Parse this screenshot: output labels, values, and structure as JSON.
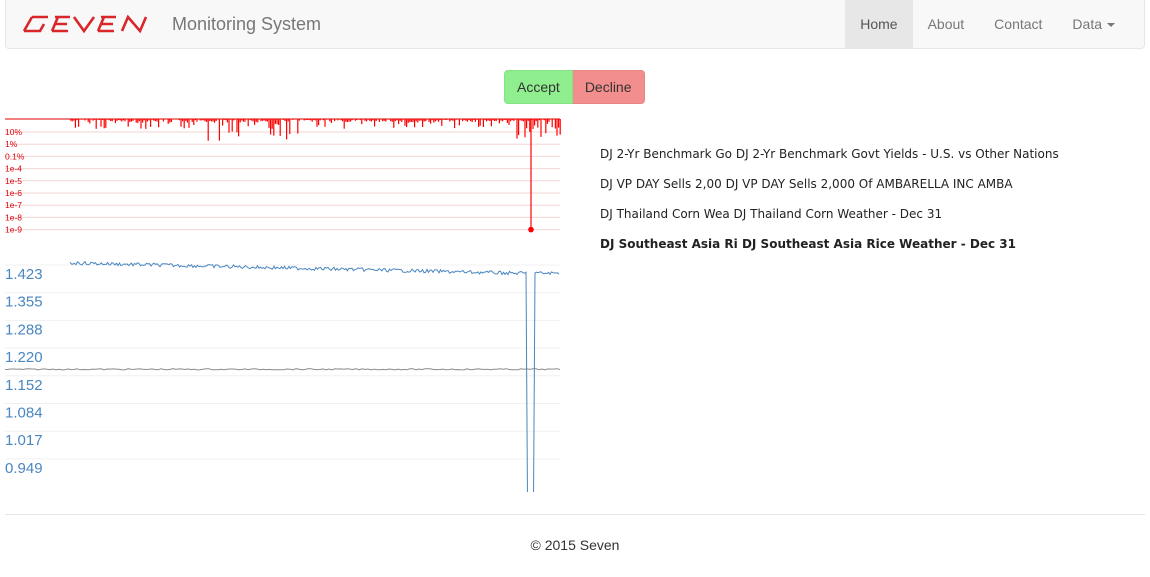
{
  "navbar": {
    "brand_name": "SEVEN",
    "title": "Monitoring System",
    "items": [
      {
        "label": "Home",
        "active": true
      },
      {
        "label": "About",
        "active": false
      },
      {
        "label": "Contact",
        "active": false
      },
      {
        "label": "Data",
        "active": false,
        "dropdown": true
      }
    ]
  },
  "actions": {
    "accept_label": "Accept",
    "decline_label": "Decline",
    "accept_color": "#8fef8f",
    "decline_color": "#f38e8e"
  },
  "news": [
    {
      "text": "DJ 2-Yr Benchmark Go DJ 2-Yr Benchmark Govt Yields - U.S. vs Other Nations",
      "bold": false
    },
    {
      "text": "DJ VP DAY Sells 2,00 DJ VP DAY Sells 2,000 Of AMBARELLA INC AMBA",
      "bold": false
    },
    {
      "text": "DJ Thailand Corn Wea DJ Thailand Corn Weather - Dec 31",
      "bold": false
    },
    {
      "text": "DJ Southeast Asia Ri DJ Southeast Asia Rice Weather - Dec 31",
      "bold": true
    }
  ],
  "chart_data": [
    {
      "type": "bar",
      "scale": "log",
      "color": "#ff0000",
      "y_ticks": [
        "10%",
        "1%",
        "0.1%",
        "1e-4",
        "1e-5",
        "1e-6",
        "1e-7",
        "1e-8",
        "1e-9"
      ],
      "anomaly_value": "1e-9"
    },
    {
      "type": "line",
      "color": "#4a86c0",
      "baseline_color": "#8a8a8a",
      "y_ticks": [
        "1.423",
        "1.355",
        "1.288",
        "1.220",
        "1.152",
        "1.084",
        "1.017",
        "0.949"
      ],
      "baseline_value": 1.19,
      "level_start": 1.45,
      "level_end": 1.425,
      "dip_min": 0.9
    }
  ],
  "footer": {
    "text": "© 2015 Seven"
  }
}
